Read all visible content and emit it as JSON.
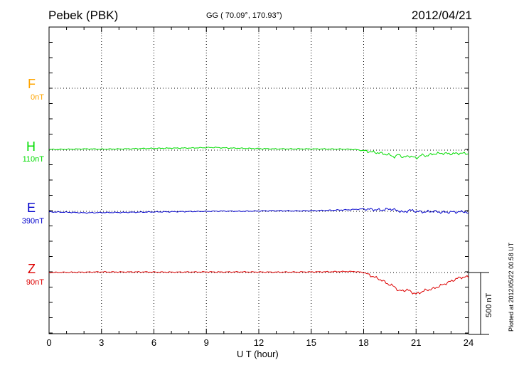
{
  "header": {
    "station": "Pebek (PBK)",
    "coords": "GG ( 70.09°, 170.93°)",
    "date": "2012/04/21"
  },
  "footer": {
    "xlabel": "U T (hour)",
    "plotted": "Plotted at 2012/05/22 00:58 UT"
  },
  "chart_data": {
    "type": "line",
    "title": "Pebek (PBK)",
    "xlabel": "U T (hour)",
    "xlim": [
      0,
      24
    ],
    "xticks": [
      "0",
      "3",
      "6",
      "9",
      "12",
      "15",
      "18",
      "21",
      "24"
    ],
    "grid": true,
    "scale_bar": "500 nT",
    "scale_bar_value": 500,
    "series": [
      {
        "name": "F",
        "baseline_label": "0nT",
        "color": "#ffa500",
        "x": [],
        "y": []
      },
      {
        "name": "H",
        "baseline_label": "110nT",
        "color": "#00dd00",
        "x": [
          0,
          1,
          2,
          3,
          4,
          5,
          6,
          7,
          8,
          9,
          9.5,
          10,
          11,
          12,
          13,
          14,
          15,
          16,
          17,
          17.5,
          18,
          18.5,
          19,
          19.5,
          19.8,
          20,
          20.3,
          20.6,
          21,
          21.3,
          21.6,
          22,
          22.5,
          23,
          23.5,
          24
        ],
        "y": [
          5,
          7,
          10,
          8,
          9,
          12,
          14,
          16,
          17,
          20,
          22,
          18,
          15,
          12,
          10,
          10,
          10,
          9,
          8,
          5,
          -5,
          -15,
          -25,
          -40,
          -55,
          -35,
          -60,
          -45,
          -65,
          -40,
          -45,
          -30,
          -25,
          -30,
          -25,
          -28
        ]
      },
      {
        "name": "E",
        "baseline_label": "390nT",
        "color": "#0000cc",
        "x": [
          0,
          1,
          2,
          3,
          4,
          5,
          6,
          7,
          8,
          9,
          10,
          11,
          12,
          13,
          14,
          15,
          16,
          17,
          17.5,
          18,
          18.5,
          19,
          19.5,
          20,
          20.3,
          20.6,
          21,
          21.5,
          22,
          22.5,
          23,
          23.5,
          23.8,
          24
        ],
        "y": [
          -5,
          -7,
          -12,
          -10,
          -9,
          -7,
          -5,
          -3,
          -2,
          0,
          2,
          0,
          3,
          5,
          3,
          5,
          8,
          12,
          15,
          20,
          15,
          10,
          20,
          5,
          -10,
          10,
          0,
          -5,
          0,
          -8,
          -5,
          -5,
          0,
          -20
        ]
      },
      {
        "name": "Z",
        "baseline_label": "90nT",
        "color": "#dd0000",
        "x": [
          0,
          1,
          2,
          3,
          4,
          5,
          6,
          7,
          8,
          9,
          10,
          11,
          12,
          13,
          14,
          15,
          16,
          17,
          17.5,
          18,
          18.5,
          19,
          19.5,
          19.8,
          20,
          20.5,
          21,
          21.5,
          22,
          22.5,
          23,
          23.5,
          24
        ],
        "y": [
          0,
          2,
          3,
          5,
          4,
          5,
          4,
          3,
          4,
          5,
          4,
          5,
          4,
          3,
          4,
          5,
          6,
          8,
          8,
          0,
          -30,
          -60,
          -100,
          -115,
          -150,
          -140,
          -175,
          -145,
          -130,
          -100,
          -70,
          -40,
          -35
        ]
      }
    ]
  }
}
